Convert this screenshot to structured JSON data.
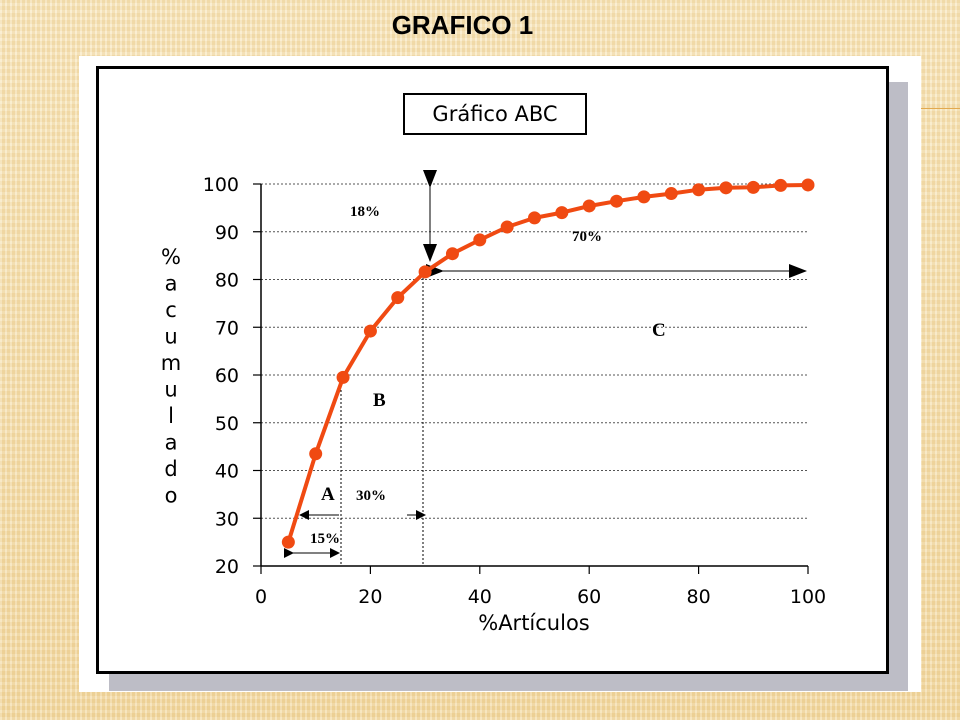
{
  "slide": {
    "title": "GRAFICO 1"
  },
  "colors": {
    "curve": "#f04a12",
    "grid": "#555555",
    "background": "#f6e2b2"
  },
  "chart_data": {
    "type": "line",
    "title": "Gráfico ABC",
    "xlabel": "%Artículos",
    "ylabel": "% acumulado",
    "xlim": [
      0,
      100
    ],
    "ylim": [
      20,
      100
    ],
    "xticks": [
      "0",
      "20",
      "40",
      "60",
      "80",
      "100"
    ],
    "yticks": [
      "20",
      "30",
      "40",
      "50",
      "60",
      "70",
      "80",
      "90",
      "100"
    ],
    "grid": "horizontal dotted",
    "series": [
      {
        "x": [
          5,
          10,
          15,
          20,
          25,
          30,
          35,
          40,
          45,
          50,
          55,
          60,
          65,
          70,
          75,
          80,
          85,
          90,
          95,
          100
        ],
        "y": [
          25,
          43.5,
          59.5,
          69.2,
          76.2,
          81.6,
          85.4,
          88.3,
          91.0,
          92.9,
          94.0,
          95.4,
          96.4,
          97.3,
          98.0,
          98.8,
          99.2,
          99.3,
          99.7,
          99.8
        ]
      }
    ],
    "annotations": {
      "label_18": "18%",
      "label_70": "70%",
      "label_C": "C",
      "label_B": "B",
      "label_A": "A",
      "label_30": "30%",
      "label_15": "15%"
    }
  }
}
